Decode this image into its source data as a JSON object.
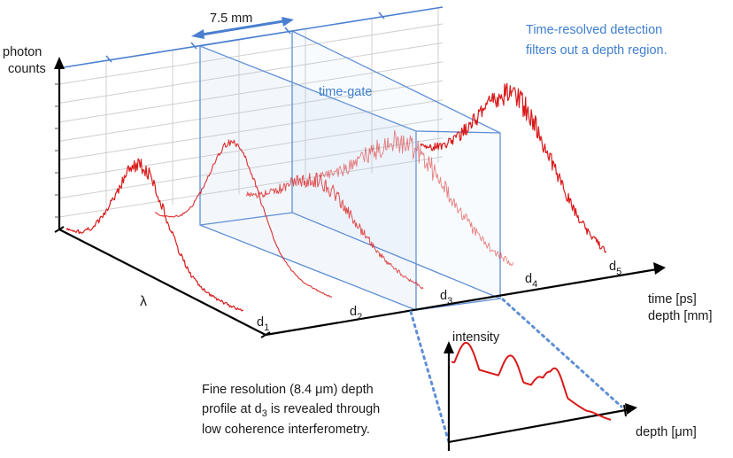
{
  "diagram": {
    "gate_width_label": "7.5 mm",
    "time_gate_label": "time-gate",
    "callout": [
      "Time-resolved detection",
      "filters out a depth region."
    ],
    "y_axis_label": [
      "photon",
      "counts"
    ],
    "lambda_label": "λ",
    "depth_markers": [
      {
        "base": "d",
        "sub": "1"
      },
      {
        "base": "d",
        "sub": "2"
      },
      {
        "base": "d",
        "sub": "3"
      },
      {
        "base": "d",
        "sub": "4"
      },
      {
        "base": "d",
        "sub": "5"
      }
    ],
    "time_axis_label": "time [ps]",
    "depth_axis_label": "depth [mm]",
    "inset": {
      "y_label": "intensity",
      "x_label": "depth [μm]"
    },
    "note": [
      "Fine resolution (8.4 μm) depth",
      "profile at d",
      "3",
      " is revealed through",
      "low coherence interferometry."
    ],
    "colors": {
      "spectra": "#d91a1a",
      "gate": "#4a7fd0",
      "axes": "#000000",
      "grid": "#c8c8c8"
    }
  }
}
